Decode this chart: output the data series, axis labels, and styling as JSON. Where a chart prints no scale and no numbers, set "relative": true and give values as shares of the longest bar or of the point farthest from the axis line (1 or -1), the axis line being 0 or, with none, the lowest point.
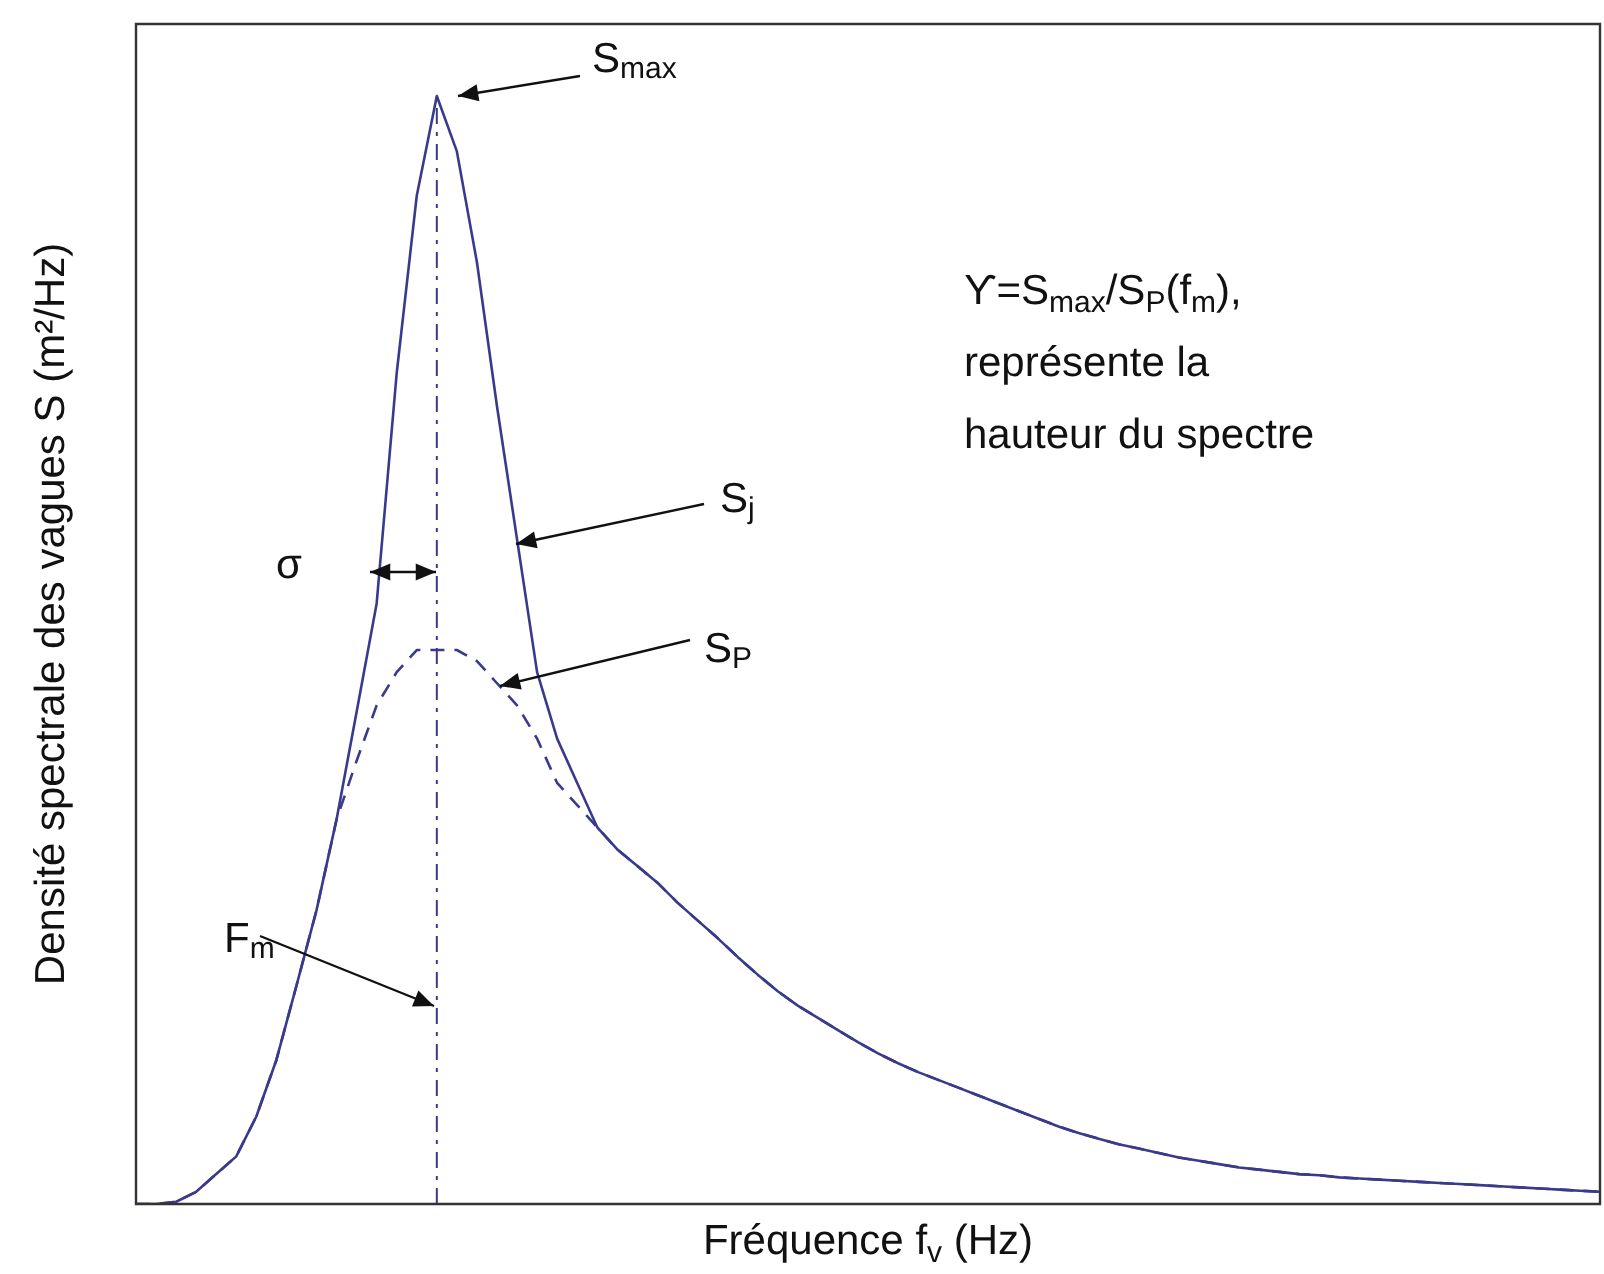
{
  "chart_data": {
    "type": "line",
    "relative": true,
    "xlabel": "Fréquence f$_{v}$ (Hz)",
    "ylabel": "Densité spectrale des vagues S (m²/Hz)",
    "categories": [
      null,
      null,
      null,
      null,
      null,
      null,
      null,
      null,
      null,
      null,
      null,
      null,
      null,
      null,
      null,
      null,
      null,
      null,
      null,
      null,
      null,
      null,
      null,
      null,
      null,
      null,
      null,
      null,
      null,
      null,
      null,
      null,
      null,
      null,
      null,
      null,
      null,
      null,
      null,
      null,
      null,
      null,
      null,
      null,
      null,
      null,
      null,
      null,
      null,
      null,
      null,
      null,
      null,
      null,
      null,
      null,
      null,
      null,
      null,
      null,
      null,
      null,
      null,
      null,
      null,
      null,
      null,
      null,
      null,
      null,
      null,
      null,
      null,
      null
    ],
    "series": [
      {
        "color": "#3a3a8c",
        "line_style": "solid",
        "values": [
          0,
          0,
          0.002,
          0.011,
          0.027,
          0.043,
          0.079,
          0.13,
          0.197,
          0.265,
          0.347,
          0.444,
          0.542,
          0.75,
          0.91,
          1,
          0.95,
          0.85,
          0.72,
          0.6,
          0.48,
          0.42,
          0.38,
          0.34,
          0.32,
          0.305,
          0.29,
          0.272,
          0.256,
          0.24,
          0.223,
          0.207,
          0.192,
          0.179,
          0.168,
          0.157,
          0.146,
          0.136,
          0.127,
          0.119,
          0.112,
          0.105,
          0.098,
          0.091,
          0.084,
          0.077,
          0.07,
          0.064,
          0.059,
          0.054,
          0.05,
          0.046,
          0.042,
          0.039,
          0.036,
          0.033,
          0.031,
          0.029,
          0.027,
          0.026,
          0.024,
          0.023,
          0.022,
          0.021,
          0.02,
          0.019,
          0.018,
          0.017,
          0.016,
          0.015,
          0.014,
          0.013,
          0.012,
          0.011
        ]
      },
      {
        "color": "#3a3a8c",
        "line_style": "dashed",
        "values": [
          0,
          0,
          0.002,
          0.011,
          0.027,
          0.043,
          0.079,
          0.13,
          0.197,
          0.265,
          0.347,
          0.4,
          0.45,
          0.48,
          0.5,
          0.5,
          0.5,
          0.49,
          0.47,
          0.45,
          0.42,
          0.38,
          0.36,
          0.34,
          0.32,
          0.305,
          0.29,
          0.272,
          0.256,
          0.24,
          0.223,
          0.207,
          0.192,
          0.179,
          0.168,
          0.157,
          0.146,
          0.136,
          0.127,
          0.119,
          0.112,
          0.105,
          0.098,
          0.091,
          0.084,
          0.077,
          0.07,
          0.064,
          0.059,
          0.054,
          0.05,
          0.046,
          0.042,
          0.039,
          0.036,
          0.033,
          0.031,
          0.029,
          0.027,
          0.026,
          0.024,
          0.023,
          0.022,
          0.021,
          0.02,
          0.019,
          0.018,
          0.017,
          0.016,
          0.015,
          0.014,
          0.013,
          0.012,
          0.011
        ]
      }
    ],
    "ref_lines": [
      {
        "axis": "x",
        "line_style": "dashed",
        "color": "#3a3a8c"
      }
    ],
    "annotations": [
      "S$_{max}$",
      "S$_{j}$",
      "σ",
      "S$_{P}$",
      "F$_{m}$",
      "ϒ=S$_{max}$/S$_{P}$(f$_{m}$), représente la hauteur du spectre"
    ]
  }
}
